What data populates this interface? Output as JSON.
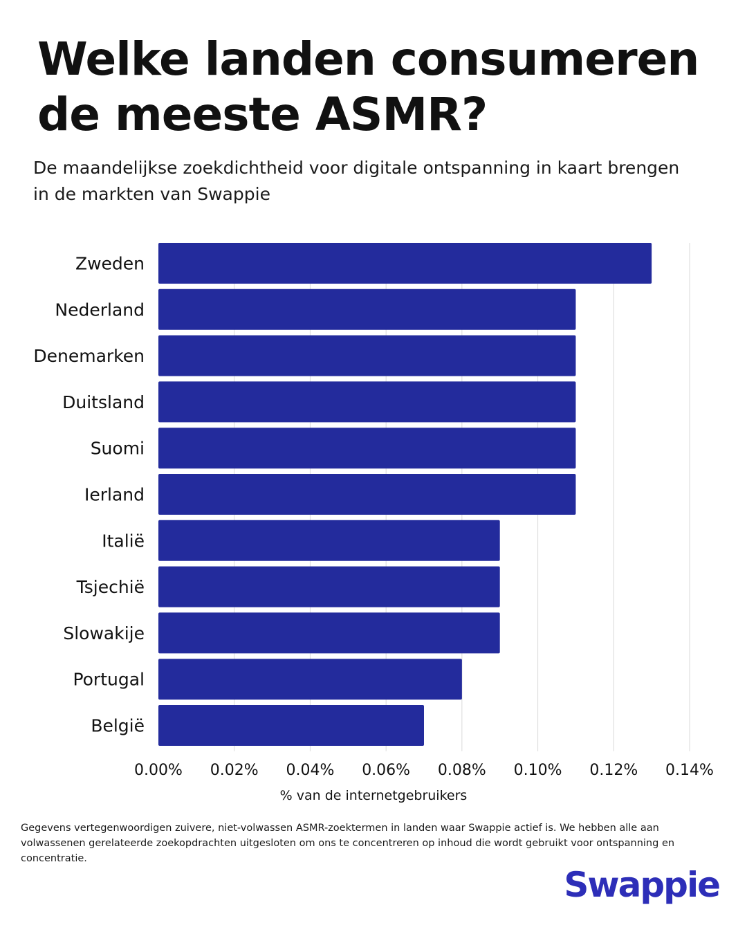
{
  "header": {
    "title": "Welke landen consumeren de meeste ASMR?",
    "subtitle": "De maandelijkse zoekdichtheid voor digitale ontspanning in kaart brengen in de markten van Swappie"
  },
  "chart_data": {
    "type": "bar",
    "orientation": "horizontal",
    "categories": [
      "Zweden",
      "Nederland",
      "Denemarken",
      "Duitsland",
      "Suomi",
      "Ierland",
      "Italië",
      "Tsjechië",
      "Slowakije",
      "Portugal",
      "België"
    ],
    "values": [
      0.13,
      0.11,
      0.11,
      0.11,
      0.11,
      0.11,
      0.09,
      0.09,
      0.09,
      0.08,
      0.07
    ],
    "xlabel": "% van de internetgebruikers",
    "ylabel": "",
    "xlim": [
      0,
      0.14
    ],
    "xticks": [
      0,
      0.02,
      0.04,
      0.06,
      0.08,
      0.1,
      0.12,
      0.14
    ],
    "xtick_labels": [
      "0.00%",
      "0.02%",
      "0.04%",
      "0.06%",
      "0.08%",
      "0.10%",
      "0.12%",
      "0.14%"
    ],
    "grid": "vertical",
    "legend": "none",
    "bar_color": "#232b9c"
  },
  "footnote": "Gegevens vertegenwoordigen zuivere, niet-volwassen ASMR-zoektermen in landen waar Swappie actief is. We hebben alle aan volwassenen gerelateerde zoekopdrachten uitgesloten om ons te concentreren op inhoud die wordt gebruikt voor ontspanning en concentratie.",
  "brand": {
    "logo_text": "Swappie",
    "color": "#2d2eb8"
  }
}
